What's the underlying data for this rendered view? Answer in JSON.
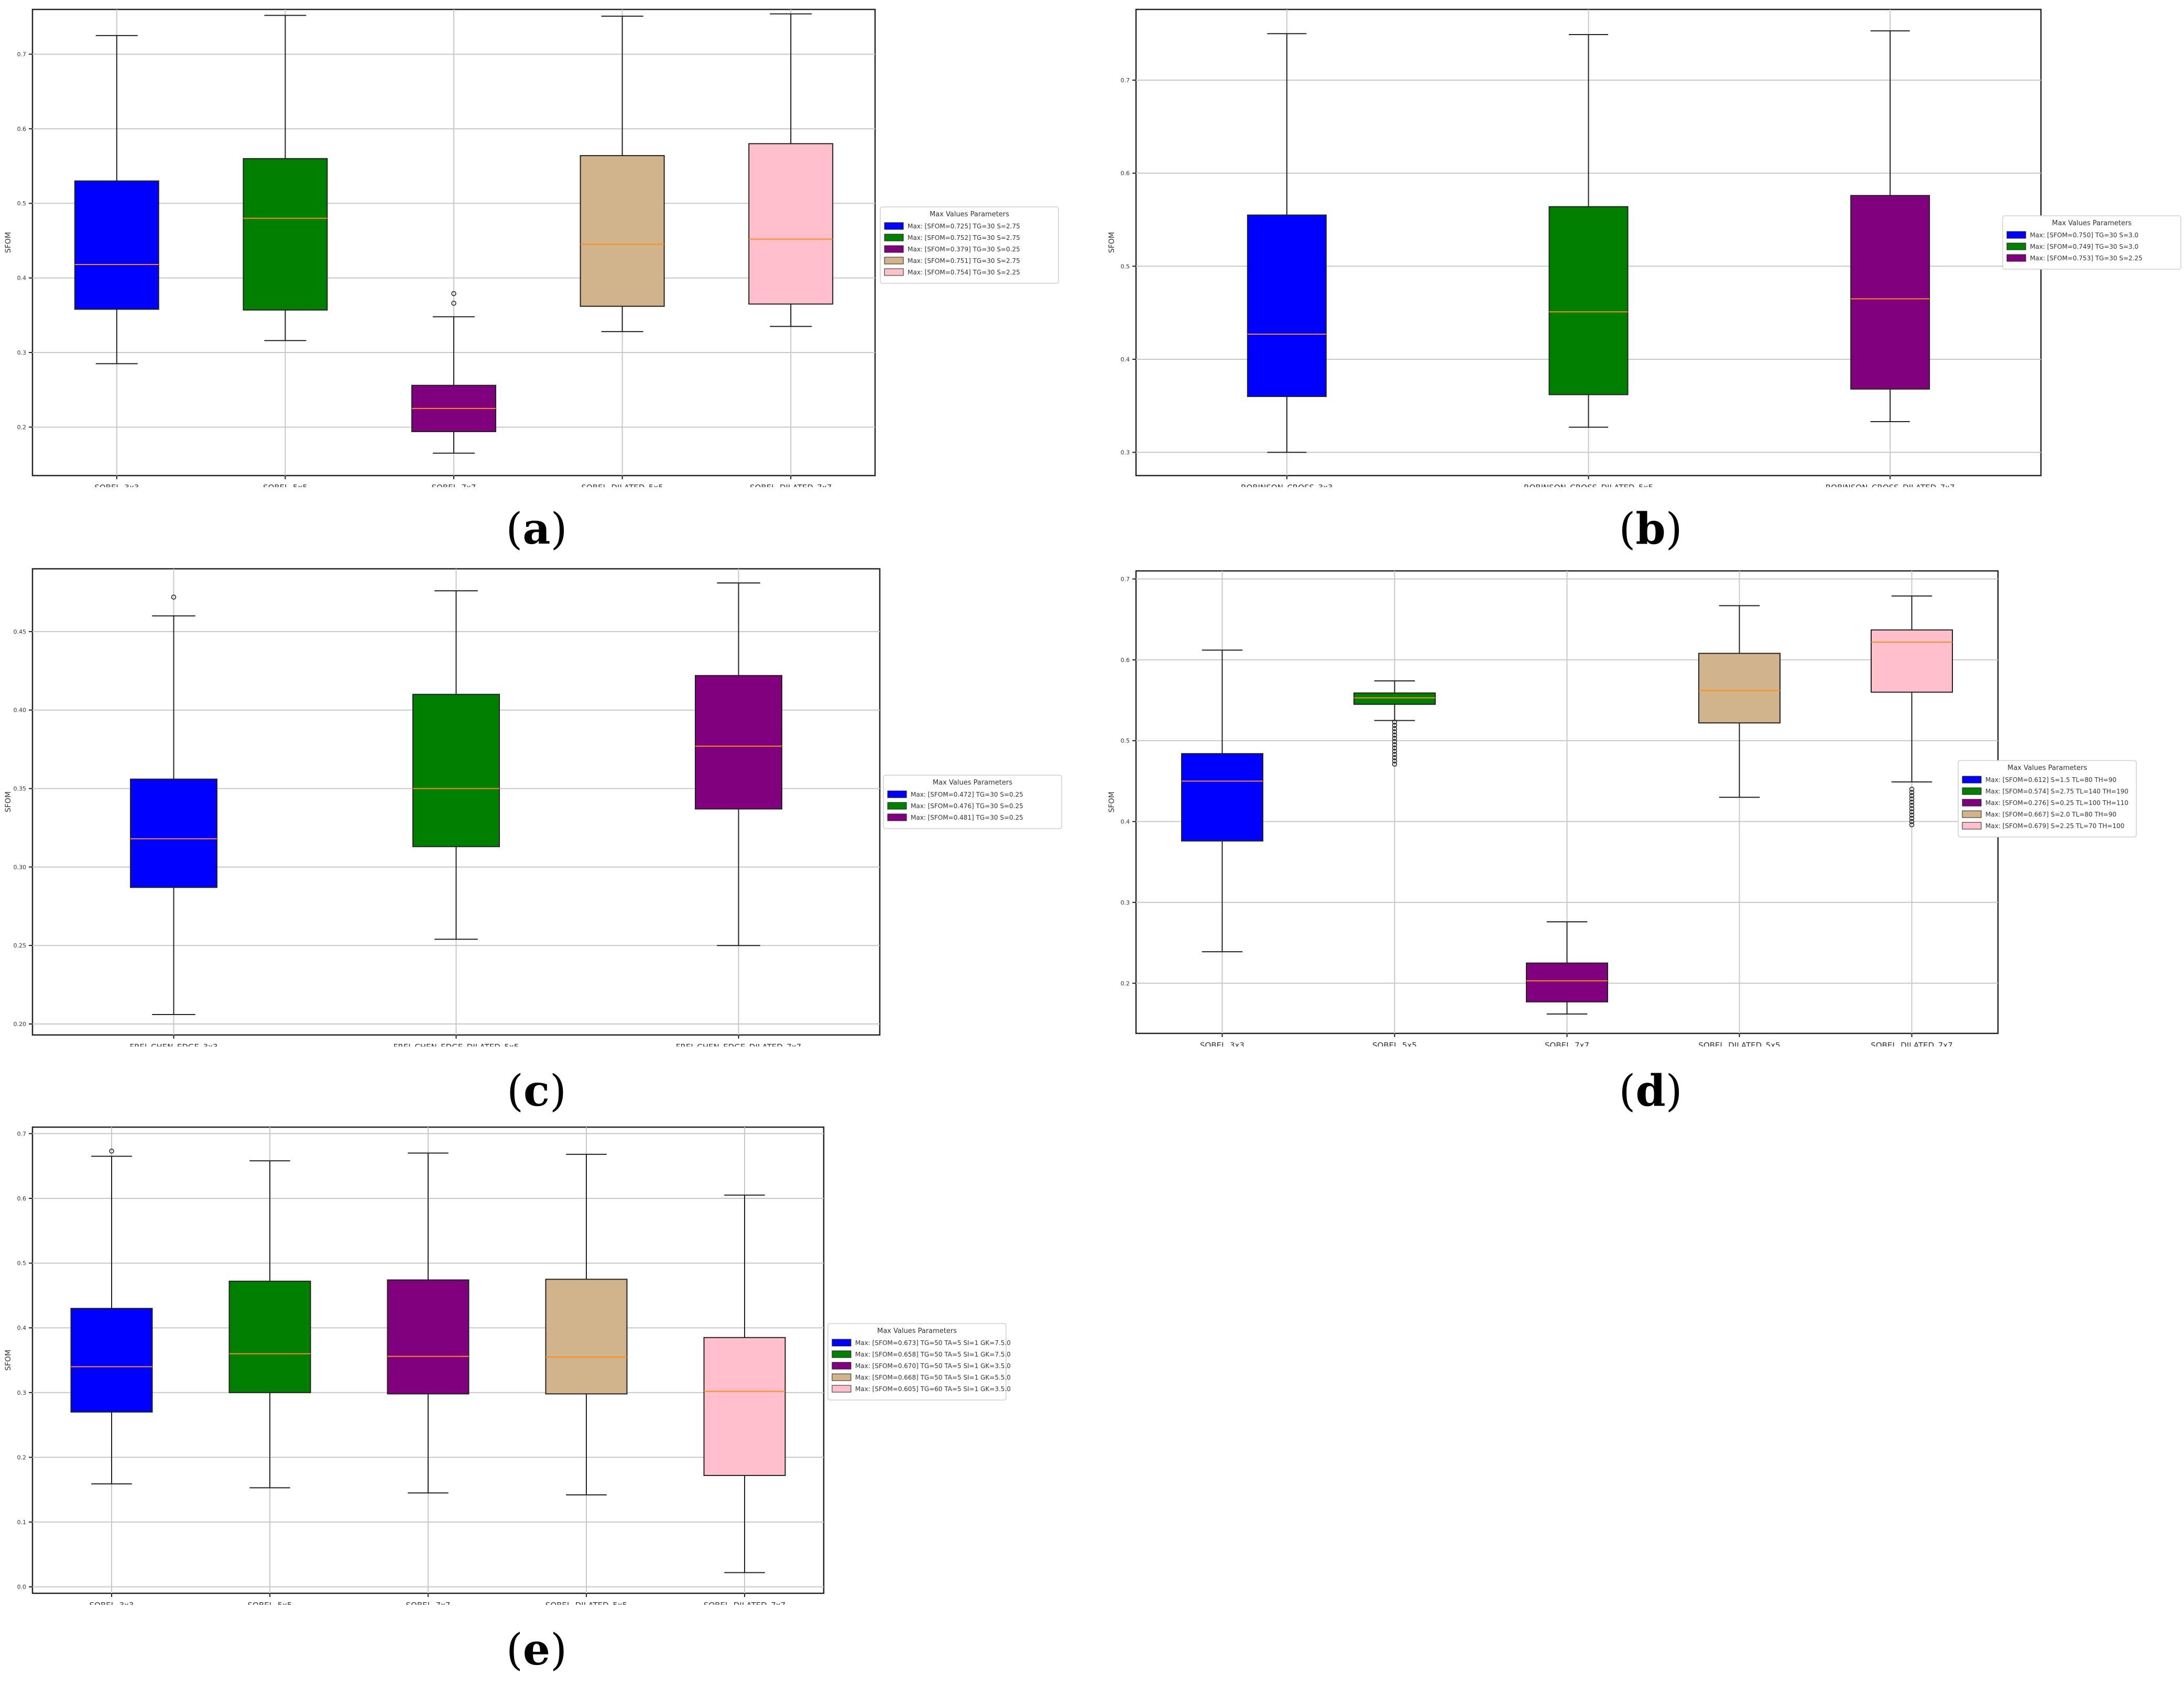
{
  "figure": {
    "panels": [
      {
        "id": "a",
        "caption": "a"
      },
      {
        "id": "b",
        "caption": "b"
      },
      {
        "id": "c",
        "caption": "c"
      },
      {
        "id": "d",
        "caption": "d"
      },
      {
        "id": "e",
        "caption": "e"
      }
    ]
  },
  "chart_data": [
    {
      "panel": "a",
      "type": "box",
      "ylabel": "SFOM",
      "ylim": [
        0.135,
        0.76
      ],
      "yticks": [
        0.2,
        0.3,
        0.4,
        0.5,
        0.6,
        0.7
      ],
      "ytick_labels": [
        "0.2",
        "0.3",
        "0.4",
        "0.5",
        "0.6",
        "0.7"
      ],
      "grid": true,
      "legend": {
        "title": "Max Values Parameters",
        "position": "right-outside",
        "entries": [
          "Max: [SFOM=0.725] TG=30  S=2.75",
          "Max: [SFOM=0.752] TG=30  S=2.75",
          "Max: [SFOM=0.379] TG=30  S=0.25",
          "Max: [SFOM=0.751] TG=30  S=2.75",
          "Max: [SFOM=0.754] TG=30  S=2.25"
        ]
      },
      "colors": [
        "#0000ff",
        "#008000",
        "#800080",
        "#d2b48c",
        "#ffc0cb"
      ],
      "categories": [
        "SOBEL_3x3",
        "SOBEL_5x5",
        "SOBEL_7x7",
        "SOBEL_DILATED_5x5",
        "SOBEL_DILATED_7x7"
      ],
      "boxes": [
        {
          "whislo": 0.285,
          "q1": 0.358,
          "med": 0.418,
          "q3": 0.53,
          "whishi": 0.725,
          "fliers": []
        },
        {
          "whislo": 0.316,
          "q1": 0.357,
          "med": 0.48,
          "q3": 0.56,
          "whishi": 0.752,
          "fliers": []
        },
        {
          "whislo": 0.165,
          "q1": 0.194,
          "med": 0.225,
          "q3": 0.256,
          "whishi": 0.348,
          "fliers": [
            0.366,
            0.379
          ]
        },
        {
          "whislo": 0.328,
          "q1": 0.362,
          "med": 0.445,
          "q3": 0.564,
          "whishi": 0.751,
          "fliers": []
        },
        {
          "whislo": 0.335,
          "q1": 0.365,
          "med": 0.452,
          "q3": 0.58,
          "whishi": 0.754,
          "fliers": []
        }
      ]
    },
    {
      "panel": "b",
      "type": "box",
      "ylabel": "SFOM",
      "ylim": [
        0.275,
        0.776
      ],
      "yticks": [
        0.3,
        0.4,
        0.5,
        0.6,
        0.7
      ],
      "ytick_labels": [
        "0.3",
        "0.4",
        "0.5",
        "0.6",
        "0.7"
      ],
      "grid": true,
      "legend": {
        "title": "Max Values Parameters",
        "position": "right-outside",
        "entries": [
          "Max: [SFOM=0.750] TG=30 S=3.0",
          "Max: [SFOM=0.749] TG=30 S=3.0",
          "Max: [SFOM=0.753] TG=30 S=2.25"
        ]
      },
      "colors": [
        "#0000ff",
        "#008000",
        "#800080"
      ],
      "categories": [
        "ROBINSON_CROSS_3x3",
        "ROBINSON_CROSS_DILATED_5x5",
        "ROBINSON_CROSS_DILATED_7x7"
      ],
      "boxes": [
        {
          "whislo": 0.3,
          "q1": 0.36,
          "med": 0.427,
          "q3": 0.555,
          "whishi": 0.75,
          "fliers": []
        },
        {
          "whislo": 0.327,
          "q1": 0.362,
          "med": 0.451,
          "q3": 0.564,
          "whishi": 0.749,
          "fliers": []
        },
        {
          "whislo": 0.333,
          "q1": 0.368,
          "med": 0.465,
          "q3": 0.576,
          "whishi": 0.753,
          "fliers": []
        }
      ]
    },
    {
      "panel": "c",
      "type": "box",
      "ylabel": "SFOM",
      "ylim": [
        0.193,
        0.49
      ],
      "yticks": [
        0.2,
        0.25,
        0.3,
        0.35,
        0.4,
        0.45
      ],
      "ytick_labels": [
        "0.20",
        "0.25",
        "0.30",
        "0.35",
        "0.40",
        "0.45"
      ],
      "grid": true,
      "legend": {
        "title": "Max Values Parameters",
        "position": "right-outside",
        "entries": [
          "Max: [SFOM=0.472] TG=30 S=0.25",
          "Max: [SFOM=0.476] TG=30 S=0.25",
          "Max: [SFOM=0.481] TG=30 S=0.25"
        ]
      },
      "colors": [
        "#0000ff",
        "#008000",
        "#800080"
      ],
      "categories": [
        "FREI_CHEN_EDGE_3x3",
        "FREI_CHEN_EDGE_DILATED_5x5",
        "FREI_CHEN_EDGE_DILATED_7x7"
      ],
      "boxes": [
        {
          "whislo": 0.206,
          "q1": 0.287,
          "med": 0.318,
          "q3": 0.356,
          "whishi": 0.46,
          "fliers": [
            0.472
          ]
        },
        {
          "whislo": 0.254,
          "q1": 0.313,
          "med": 0.35,
          "q3": 0.41,
          "whishi": 0.476,
          "fliers": []
        },
        {
          "whislo": 0.25,
          "q1": 0.337,
          "med": 0.377,
          "q3": 0.422,
          "whishi": 0.481,
          "fliers": []
        }
      ]
    },
    {
      "panel": "d",
      "type": "box",
      "ylabel": "SFOM",
      "ylim": [
        0.138,
        0.71
      ],
      "yticks": [
        0.2,
        0.3,
        0.4,
        0.5,
        0.6,
        0.7
      ],
      "ytick_labels": [
        "0.2",
        "0.3",
        "0.4",
        "0.5",
        "0.6",
        "0.7"
      ],
      "grid": true,
      "legend": {
        "title": "Max Values Parameters",
        "position": "right-outside",
        "entries": [
          "Max: [SFOM=0.612]  S=1.5 TL=80 TH=90",
          "Max: [SFOM=0.574]  S=2.75 TL=140 TH=190",
          "Max: [SFOM=0.276]  S=0.25 TL=100 TH=110",
          "Max: [SFOM=0.667]  S=2.0 TL=80 TH=90",
          "Max: [SFOM=0.679]  S=2.25 TL=70 TH=100"
        ]
      },
      "colors": [
        "#0000ff",
        "#008000",
        "#800080",
        "#d2b48c",
        "#ffc0cb"
      ],
      "categories": [
        "SOBEL_3x3",
        "SOBEL_5x5",
        "SOBEL_7x7",
        "SOBEL_DILATED_5x5",
        "SOBEL_DILATED_7x7"
      ],
      "boxes": [
        {
          "whislo": 0.239,
          "q1": 0.376,
          "med": 0.45,
          "q3": 0.484,
          "whishi": 0.612,
          "fliers": []
        },
        {
          "whislo": 0.525,
          "q1": 0.545,
          "med": 0.553,
          "q3": 0.559,
          "whishi": 0.574,
          "fliers": [
            0.471,
            0.475,
            0.479,
            0.483,
            0.487,
            0.491,
            0.495,
            0.499,
            0.503,
            0.507,
            0.511,
            0.515,
            0.519,
            0.523
          ]
        },
        {
          "whislo": 0.162,
          "q1": 0.177,
          "med": 0.203,
          "q3": 0.225,
          "whishi": 0.276,
          "fliers": []
        },
        {
          "whislo": 0.43,
          "q1": 0.522,
          "med": 0.562,
          "q3": 0.608,
          "whishi": 0.667,
          "fliers": []
        },
        {
          "whislo": 0.449,
          "q1": 0.56,
          "med": 0.622,
          "q3": 0.637,
          "whishi": 0.679,
          "fliers": [
            0.396,
            0.4,
            0.404,
            0.408,
            0.412,
            0.416,
            0.42,
            0.424,
            0.428,
            0.432,
            0.436,
            0.44
          ]
        }
      ]
    },
    {
      "panel": "e",
      "type": "box",
      "ylabel": "SFOM",
      "ylim": [
        -0.01,
        0.71
      ],
      "yticks": [
        0.0,
        0.1,
        0.2,
        0.3,
        0.4,
        0.5,
        0.6,
        0.7
      ],
      "ytick_labels": [
        "0.0",
        "0.1",
        "0.2",
        "0.3",
        "0.4",
        "0.5",
        "0.6",
        "0.7"
      ],
      "grid": true,
      "legend": {
        "title": "Max Values Parameters",
        "position": "right-outside",
        "entries": [
          "Max: [SFOM=0.673] TG=50 TA=5 SI=1 GK=7.5.0",
          "Max: [SFOM=0.658] TG=50 TA=5 SI=1 GK=7.5.0",
          "Max: [SFOM=0.670] TG=50 TA=5 SI=1 GK=3.5.0",
          "Max: [SFOM=0.668] TG=50 TA=5 SI=1 GK=5.5.0",
          "Max: [SFOM=0.605] TG=60 TA=5 SI=1 GK=3.5.0"
        ]
      },
      "colors": [
        "#0000ff",
        "#008000",
        "#800080",
        "#d2b48c",
        "#ffc0cb"
      ],
      "categories": [
        "SOBEL_3x3",
        "SOBEL_5x5",
        "SOBEL_7x7",
        "SOBEL_DILATED_5x5",
        "SOBEL_DILATED_7x7"
      ],
      "boxes": [
        {
          "whislo": 0.159,
          "q1": 0.27,
          "med": 0.34,
          "q3": 0.43,
          "whishi": 0.665,
          "fliers": [
            0.673
          ]
        },
        {
          "whislo": 0.153,
          "q1": 0.3,
          "med": 0.36,
          "q3": 0.472,
          "whishi": 0.658,
          "fliers": []
        },
        {
          "whislo": 0.145,
          "q1": 0.298,
          "med": 0.356,
          "q3": 0.474,
          "whishi": 0.67,
          "fliers": []
        },
        {
          "whislo": 0.142,
          "q1": 0.298,
          "med": 0.355,
          "q3": 0.475,
          "whishi": 0.668,
          "fliers": []
        },
        {
          "whislo": 0.022,
          "q1": 0.172,
          "med": 0.302,
          "q3": 0.385,
          "whishi": 0.605,
          "fliers": []
        }
      ]
    }
  ]
}
